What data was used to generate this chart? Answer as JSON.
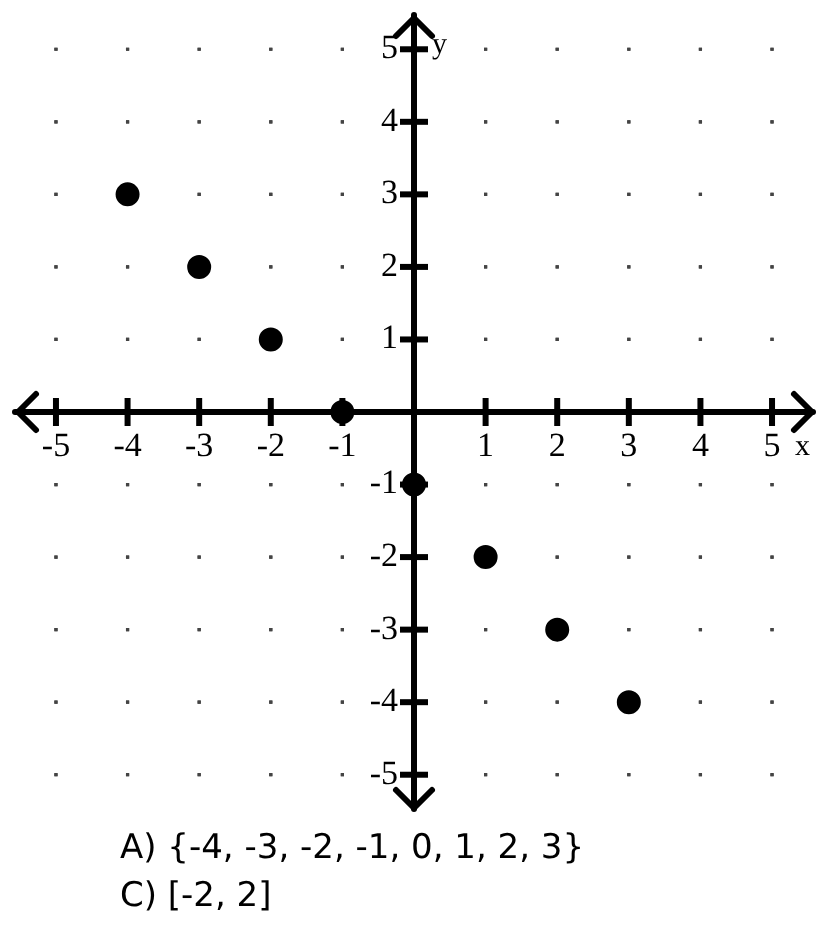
{
  "chart_data": {
    "type": "scatter",
    "xlabel": "x",
    "ylabel": "y",
    "x": [
      -4,
      -3,
      -2,
      -1,
      0,
      1,
      2,
      3
    ],
    "values": [
      3,
      2,
      1,
      0,
      -1,
      -2,
      -3,
      -4
    ],
    "color": "#000000",
    "marker": "circle",
    "xlim": [
      -5.6,
      5.6
    ],
    "ylim": [
      -5.5,
      5.5
    ],
    "xticks": [
      -5,
      -4,
      -3,
      -2,
      -1,
      1,
      2,
      3,
      4,
      5
    ],
    "yticks": [
      -5,
      -4,
      -3,
      -2,
      -1,
      1,
      2,
      3,
      4,
      5
    ],
    "grid": true,
    "annotations": [
      "A) {-4, -3, -2, -1, 0, 1, 2, 3}",
      "C) [-2, 2]"
    ]
  }
}
